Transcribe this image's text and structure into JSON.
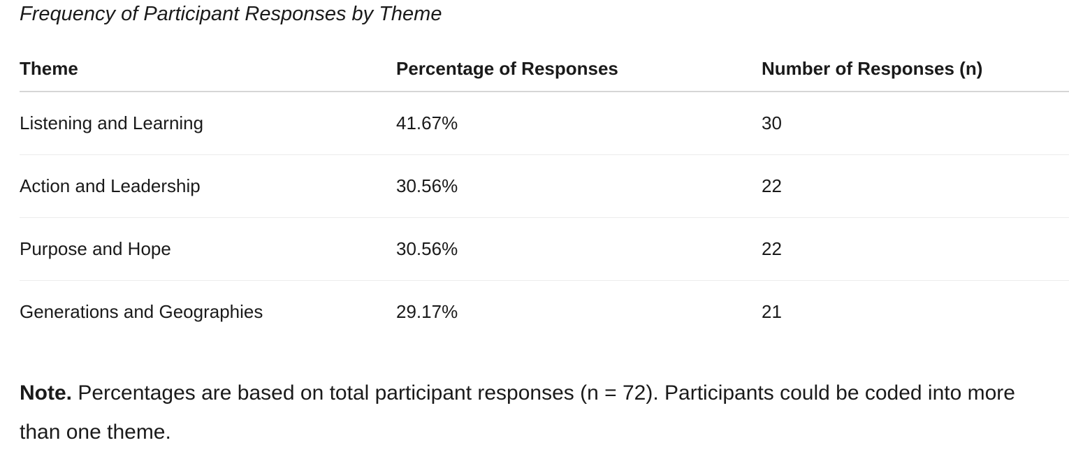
{
  "caption": "Frequency of Participant Responses by Theme",
  "table": {
    "headers": [
      "Theme",
      "Percentage of Responses",
      "Number of Responses (n)"
    ],
    "rows": [
      {
        "theme": "Listening and Learning",
        "percentage": "41.67%",
        "count": "30"
      },
      {
        "theme": "Action and Leadership",
        "percentage": "30.56%",
        "count": "22"
      },
      {
        "theme": "Purpose and Hope",
        "percentage": "30.56%",
        "count": "22"
      },
      {
        "theme": "Generations and Geographies",
        "percentage": "29.17%",
        "count": "21"
      }
    ]
  },
  "note": {
    "label": "Note.",
    "text": " Percentages are based on total participant responses (n = 72). Participants could be coded into more than one theme."
  }
}
